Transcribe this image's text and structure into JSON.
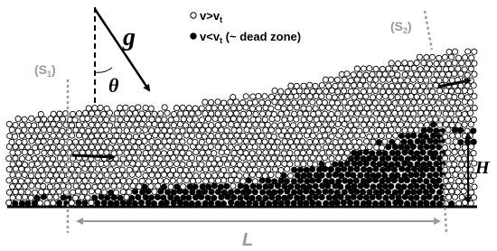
{
  "gravity": {
    "symbol": "g",
    "angle_symbol": "θ"
  },
  "legend": [
    {
      "text": "v>v",
      "sub": "t"
    },
    {
      "text": "v<v",
      "sub": "t",
      "suffix": " (~ dead zone)"
    }
  ],
  "sections": [
    {
      "text": "(S",
      "sub": "1",
      "suffix": ")"
    },
    {
      "text": "(S",
      "sub": "2",
      "suffix": ")"
    }
  ],
  "height_label": "H",
  "length_label": "L"
}
